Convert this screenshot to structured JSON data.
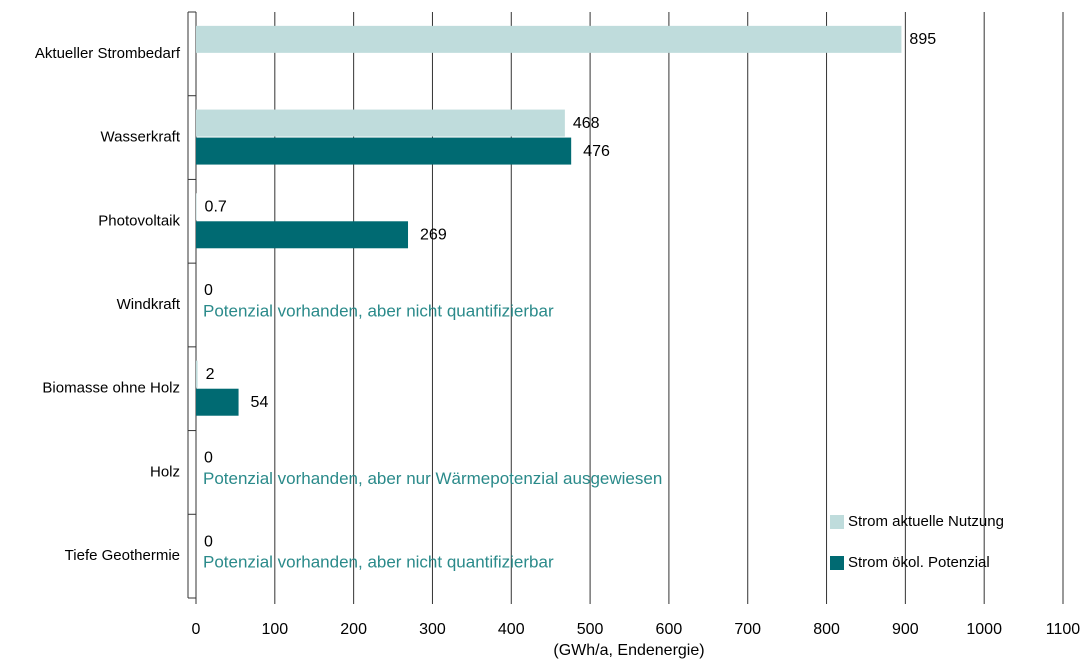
{
  "chart_data": {
    "type": "hbar",
    "xlabel": "(GWh/a, Endenergie)",
    "categories": [
      "Aktueller Strombedarf",
      "Wasserkraft",
      "Photovoltaik",
      "Windkraft",
      "Biomasse ohne Holz",
      "Holz",
      "Tiefe Geothermie"
    ],
    "series": [
      {
        "name": "Strom aktuelle Nutzung",
        "color": "#bfdcdc",
        "values": [
          895,
          468,
          0.7,
          0,
          2,
          0,
          0
        ]
      },
      {
        "name": "Strom ökol. Potenzial",
        "color": "#006a72",
        "values": [
          null,
          476,
          269,
          null,
          54,
          null,
          null
        ]
      }
    ],
    "annotations": [
      {
        "category": "Windkraft",
        "text": "Potenzial vorhanden, aber nicht quantifizierbar"
      },
      {
        "category": "Holz",
        "text": "Potenzial vorhanden, aber nur Wärmepotenzial ausgewiesen"
      },
      {
        "category": "Tiefe Geothermie",
        "text": "Potenzial vorhanden, aber nicht quantifizierbar"
      }
    ],
    "annotation_color": "#2a8a8a",
    "xlim": [
      0,
      1100
    ],
    "xticks": [
      0,
      100,
      200,
      300,
      400,
      500,
      600,
      700,
      800,
      900,
      1000,
      1100
    ],
    "grid": true,
    "legend": "lower right"
  }
}
